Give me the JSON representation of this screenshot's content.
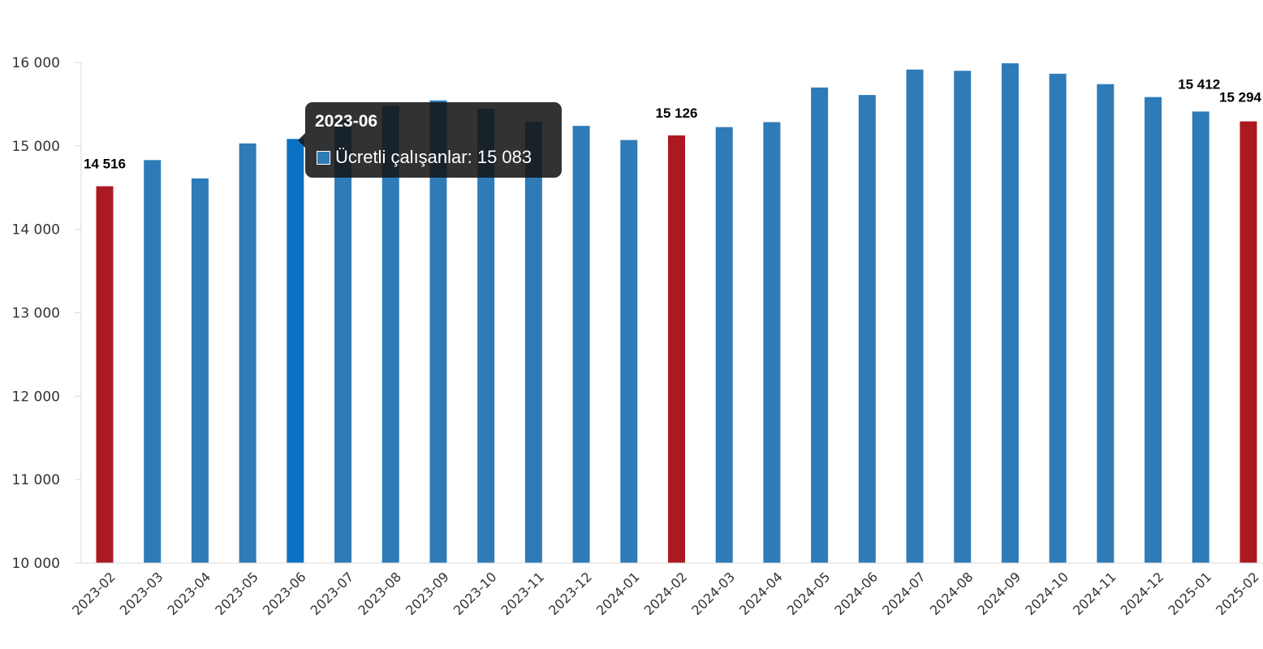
{
  "chart_data": {
    "type": "bar",
    "categories": [
      "2023-02",
      "2023-03",
      "2023-04",
      "2023-05",
      "2023-06",
      "2023-07",
      "2023-08",
      "2023-09",
      "2023-10",
      "2023-11",
      "2023-12",
      "2024-01",
      "2024-02",
      "2024-03",
      "2024-04",
      "2024-05",
      "2024-06",
      "2024-07",
      "2024-08",
      "2024-09",
      "2024-10",
      "2024-11",
      "2024-12",
      "2025-01",
      "2025-02"
    ],
    "series": [
      {
        "name": "Ücretli çalışanlar",
        "values": [
          14516,
          14830,
          14610,
          15030,
          15083,
          15310,
          15480,
          15545,
          15445,
          15290,
          15240,
          15070,
          15126,
          15225,
          15285,
          15700,
          15610,
          15915,
          15900,
          15990,
          15865,
          15740,
          15585,
          15412,
          15294
        ]
      }
    ],
    "ylim": [
      10000,
      16000
    ],
    "yticks": [
      10000,
      11000,
      12000,
      13000,
      14000,
      15000,
      16000
    ],
    "ytick_labels": [
      "10 000",
      "11 000",
      "12 000",
      "13 000",
      "14 000",
      "15 000",
      "16 000"
    ],
    "grid": false,
    "colors": {
      "bar": "#2e7bb8",
      "highlight": "#ac1920",
      "hover": "#0a72c4"
    },
    "highlighted_categories": [
      "2023-02",
      "2024-02",
      "2025-02"
    ],
    "data_labels": [
      {
        "category": "2023-02",
        "text": "14 516"
      },
      {
        "category": "2024-02",
        "text": "15 126"
      },
      {
        "category": "2025-01",
        "text": "15 412"
      },
      {
        "category": "2025-02",
        "text": "15 294"
      }
    ],
    "hovered_category": "2023-06"
  },
  "tooltip": {
    "title": "2023-06",
    "series_label": "Ücretli çalışanlar: 15 083",
    "swatch_color": "#2e7bb8"
  }
}
